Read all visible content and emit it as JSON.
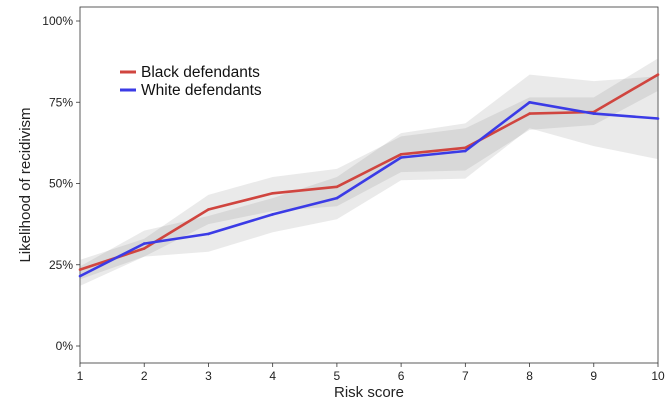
{
  "chart_data": {
    "type": "line",
    "title": "",
    "xlabel": "Risk score",
    "ylabel": "Likelihood of recidivism",
    "x": [
      1,
      2,
      3,
      4,
      5,
      6,
      7,
      8,
      9,
      10
    ],
    "xlim": [
      1,
      10
    ],
    "ylim": [
      0,
      1.05
    ],
    "yticks": [
      0,
      0.25,
      0.5,
      0.75,
      1.0
    ],
    "ytick_labels": [
      "0%",
      "25%",
      "50%",
      "75%",
      "100%"
    ],
    "xtick_labels": [
      "1",
      "2",
      "3",
      "4",
      "5",
      "6",
      "7",
      "8",
      "9",
      "10"
    ],
    "grid": false,
    "legend_position": "top-left",
    "series": [
      {
        "name": "Black defendants",
        "color": "#d0453f",
        "values": [
          0.235,
          0.3,
          0.42,
          0.47,
          0.49,
          0.59,
          0.61,
          0.715,
          0.72,
          0.835
        ],
        "ci_lower": [
          0.205,
          0.275,
          0.375,
          0.415,
          0.43,
          0.535,
          0.54,
          0.665,
          0.68,
          0.785
        ],
        "ci_upper": [
          0.265,
          0.33,
          0.465,
          0.52,
          0.545,
          0.645,
          0.67,
          0.765,
          0.765,
          0.885
        ]
      },
      {
        "name": "White defendants",
        "color": "#3b3be6",
        "values": [
          0.215,
          0.315,
          0.345,
          0.405,
          0.455,
          0.58,
          0.6,
          0.75,
          0.715,
          0.7
        ],
        "ci_lower": [
          0.185,
          0.275,
          0.29,
          0.35,
          0.39,
          0.51,
          0.515,
          0.67,
          0.615,
          0.575
        ],
        "ci_upper": [
          0.245,
          0.355,
          0.4,
          0.455,
          0.52,
          0.655,
          0.685,
          0.835,
          0.815,
          0.83
        ]
      }
    ]
  }
}
